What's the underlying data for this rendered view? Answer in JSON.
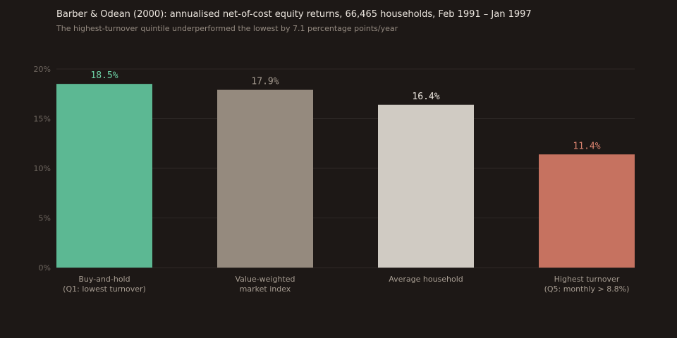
{
  "chart_data": {
    "type": "bar",
    "title": "Barber & Odean (2000): annualised net-of-cost equity returns, 66,465 households, Feb 1991 – Jan 1997",
    "subtitle": "The highest-turnover quintile underperformed the lowest by 7.1 percentage points/year",
    "xlabel": "",
    "ylabel": "",
    "ylim": [
      0,
      20
    ],
    "yticks": [
      {
        "value": 0,
        "label": "0%"
      },
      {
        "value": 5,
        "label": "5%"
      },
      {
        "value": 10,
        "label": "10%"
      },
      {
        "value": 15,
        "label": "15%"
      },
      {
        "value": 20,
        "label": "20%"
      }
    ],
    "grid": true,
    "categories": [
      [
        "Buy-and-hold",
        "(Q1: lowest turnover)"
      ],
      [
        "Value-weighted",
        "market index"
      ],
      [
        "Average household"
      ],
      [
        "Highest turnover",
        "(Q5: monthly > 8.8%)"
      ]
    ],
    "values": [
      18.5,
      17.9,
      16.4,
      11.4
    ],
    "value_labels": [
      "18.5%",
      "17.9%",
      "16.4%",
      "11.4%"
    ],
    "bar_colors": [
      "#5cb893",
      "#958a7e",
      "#d0cbc3",
      "#c67260"
    ],
    "label_colors": [
      "#6dd2a6",
      "#a69c91",
      "#ece6df",
      "#dd8470"
    ],
    "gridline_color": "#2e2926",
    "background": "#1d1816"
  }
}
